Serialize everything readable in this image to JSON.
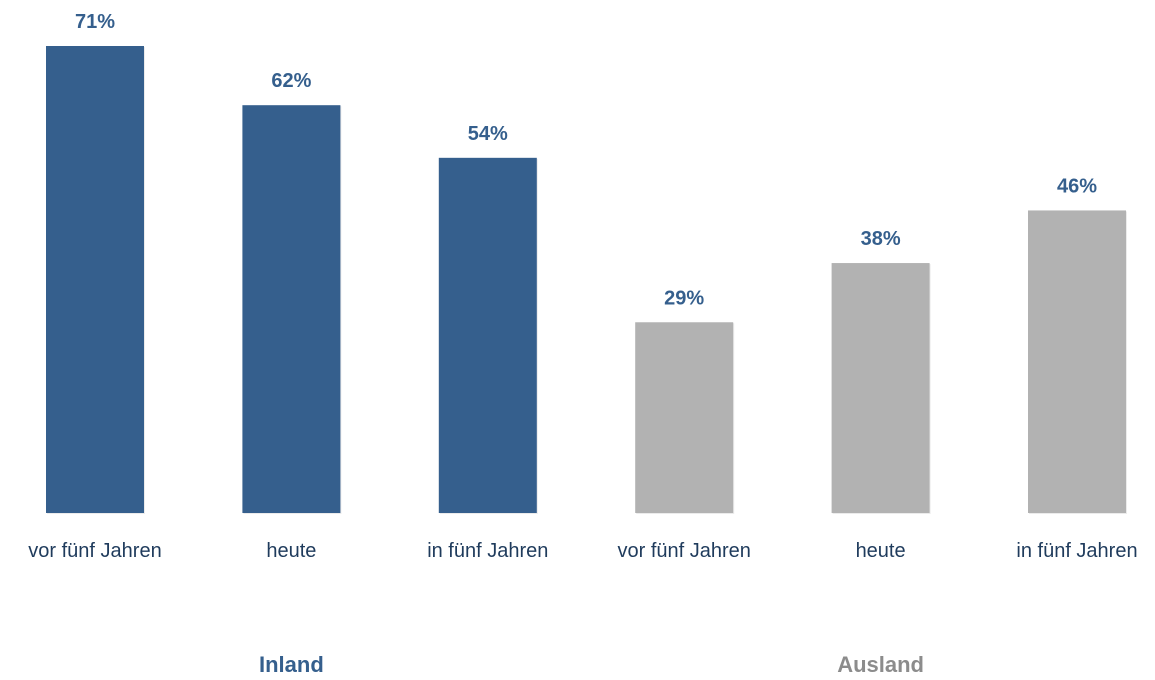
{
  "chart_data": {
    "type": "bar",
    "value_label_color": "#355f8d",
    "groups": [
      {
        "name": "Inland",
        "color": "#355f8d",
        "label_color": "#355f8d",
        "categories": [
          "vor fünf Jahren",
          "heute",
          "in fünf Jahren"
        ],
        "values": [
          71,
          62,
          54
        ],
        "value_labels": [
          "71%",
          "62%",
          "54%"
        ]
      },
      {
        "name": "Ausland",
        "color": "#b2b2b2",
        "label_color": "#8c8c8c",
        "categories": [
          "vor fünf Jahren",
          "heute",
          "in fünf Jahren"
        ],
        "values": [
          29,
          38,
          46
        ],
        "value_labels": [
          "29%",
          "38%",
          "46%"
        ]
      }
    ]
  }
}
